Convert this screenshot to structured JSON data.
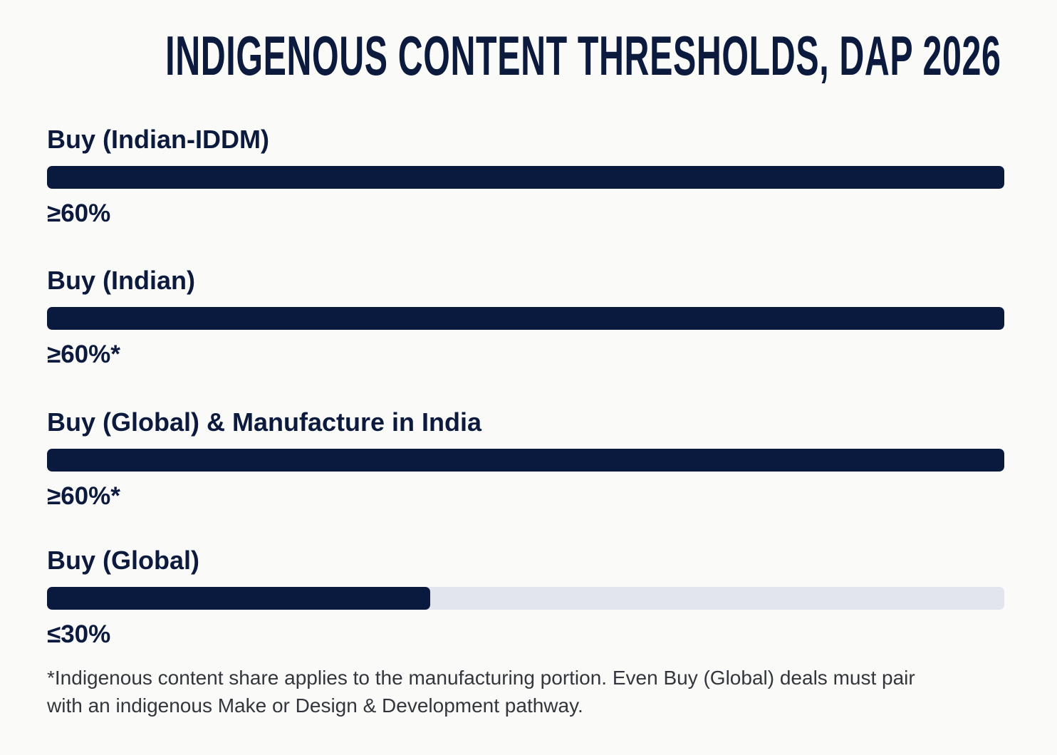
{
  "title": "INDIGENOUS CONTENT THRESHOLDS, DAP 2026",
  "footnote": "*Indigenous content share applies to the manufacturing portion. Even Buy (Global) deals must pair with an indigenous Make or Design & Development pathway.",
  "colors": {
    "bar_fill": "#0a1a3e",
    "bar_track": "#e2e5ee",
    "text": "#0b1a3d",
    "background": "#fafaf8"
  },
  "chart_data": {
    "type": "bar",
    "orientation": "horizontal",
    "title": "INDIGENOUS CONTENT THRESHOLDS, DAP 2026",
    "xlim": [
      0,
      75
    ],
    "categories": [
      "Buy (Indian-IDDM)",
      "Buy (Indian)",
      "Buy (Global) & Manufacture in India",
      "Buy (Global)"
    ],
    "values": [
      75,
      75,
      75,
      30
    ],
    "value_labels": [
      "≥60%",
      "≥60%*",
      "≥60%*",
      "≤30%"
    ]
  }
}
